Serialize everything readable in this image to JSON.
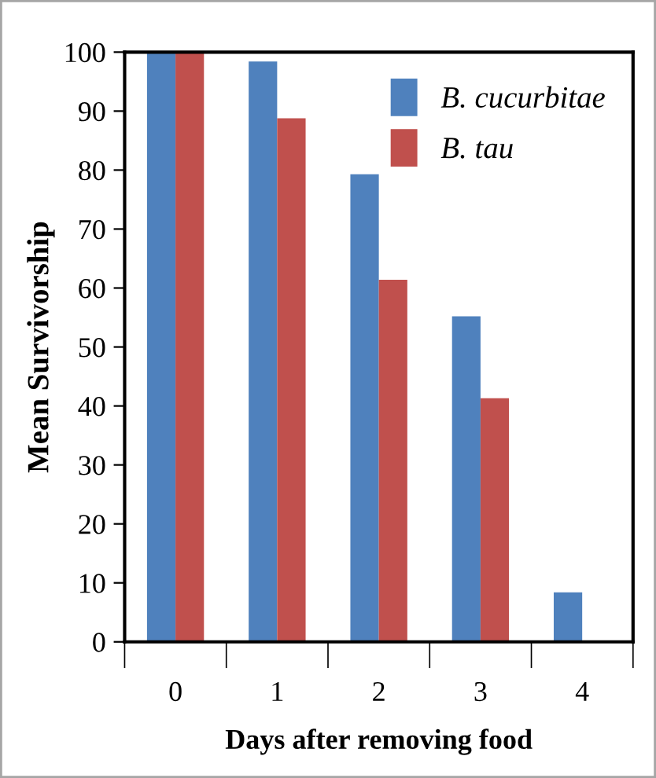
{
  "chart_data": {
    "type": "bar",
    "xlabel": "Days after removing food",
    "ylabel": "Mean Survivorship",
    "categories": [
      "0",
      "1",
      "2",
      "3",
      "4"
    ],
    "series": [
      {
        "name": "B. cucurbitae",
        "color": "#4f81bd",
        "values": [
          100,
          98.4,
          79.3,
          55.2,
          8.4
        ]
      },
      {
        "name": "B. tau",
        "color": "#c0504d",
        "values": [
          100,
          88.8,
          61.4,
          41.3,
          0
        ]
      }
    ],
    "ylim": [
      0,
      100
    ],
    "yticks": [
      0,
      10,
      20,
      30,
      40,
      50,
      60,
      70,
      80,
      90,
      100
    ],
    "grid": false,
    "legend": "top right"
  }
}
